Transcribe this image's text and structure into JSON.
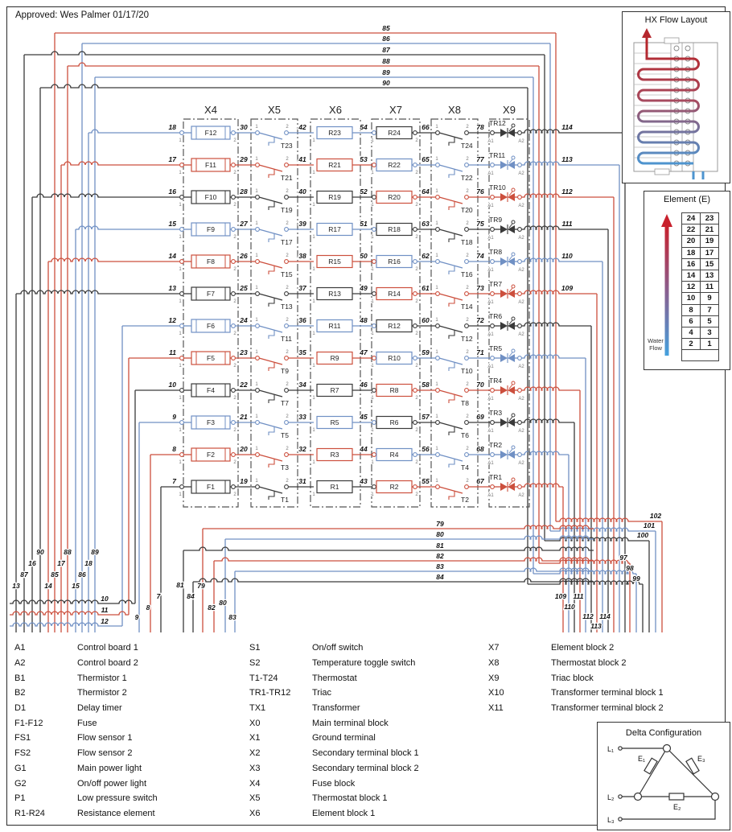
{
  "approved": "Approved: Wes Palmer 01/17/20",
  "colors": {
    "black": "#3a3a3a",
    "red": "#cc4f3d",
    "blue": "#7090c4"
  },
  "blocks": [
    "X4",
    "X5",
    "X6",
    "X7",
    "X8",
    "X9"
  ],
  "rows": [
    {
      "w1": "18",
      "fuse": "F12",
      "w2": "30",
      "t1": "T23",
      "w3": "42",
      "el1": "R23",
      "w4": "54",
      "el2": "R24",
      "w5": "66",
      "t2": "T24",
      "w6": "78",
      "tr": "TR12",
      "out": "114",
      "lc": "blue",
      "rc": "black"
    },
    {
      "w1": "17",
      "fuse": "F11",
      "w2": "29",
      "t1": "T21",
      "w3": "41",
      "el1": "R21",
      "w4": "53",
      "el2": "R22",
      "w5": "65",
      "t2": "T22",
      "w6": "77",
      "tr": "TR11",
      "out": "113",
      "lc": "red",
      "rc": "blue"
    },
    {
      "w1": "16",
      "fuse": "F10",
      "w2": "28",
      "t1": "T19",
      "w3": "40",
      "el1": "R19",
      "w4": "52",
      "el2": "R20",
      "w5": "64",
      "t2": "T20",
      "w6": "76",
      "tr": "TR10",
      "out": "112",
      "lc": "black",
      "rc": "red"
    },
    {
      "w1": "15",
      "fuse": "F9",
      "w2": "27",
      "t1": "T17",
      "w3": "39",
      "el1": "R17",
      "w4": "51",
      "el2": "R18",
      "w5": "63",
      "t2": "T18",
      "w6": "75",
      "tr": "TR9",
      "out": "111",
      "lc": "blue",
      "rc": "black"
    },
    {
      "w1": "14",
      "fuse": "F8",
      "w2": "26",
      "t1": "T15",
      "w3": "38",
      "el1": "R15",
      "w4": "50",
      "el2": "R16",
      "w5": "62",
      "t2": "T16",
      "w6": "74",
      "tr": "TR8",
      "out": "110",
      "lc": "red",
      "rc": "blue"
    },
    {
      "w1": "13",
      "fuse": "F7",
      "w2": "25",
      "t1": "T13",
      "w3": "37",
      "el1": "R13",
      "w4": "49",
      "el2": "R14",
      "w5": "61",
      "t2": "T14",
      "w6": "73",
      "tr": "TR7",
      "out": "109",
      "lc": "black",
      "rc": "red"
    },
    {
      "w1": "12",
      "fuse": "F6",
      "w2": "24",
      "t1": "T11",
      "w3": "36",
      "el1": "R11",
      "w4": "48",
      "el2": "R12",
      "w5": "60",
      "t2": "T12",
      "w6": "72",
      "tr": "TR6",
      "out": null,
      "lc": "blue",
      "rc": "black"
    },
    {
      "w1": "11",
      "fuse": "F5",
      "w2": "23",
      "t1": "T9",
      "w3": "35",
      "el1": "R9",
      "w4": "47",
      "el2": "R10",
      "w5": "59",
      "t2": "T10",
      "w6": "71",
      "tr": "TR5",
      "out": null,
      "lc": "red",
      "rc": "blue"
    },
    {
      "w1": "10",
      "fuse": "F4",
      "w2": "22",
      "t1": "T7",
      "w3": "34",
      "el1": "R7",
      "w4": "46",
      "el2": "R8",
      "w5": "58",
      "t2": "T8",
      "w6": "70",
      "tr": "TR4",
      "out": null,
      "lc": "black",
      "rc": "red"
    },
    {
      "w1": "9",
      "fuse": "F3",
      "w2": "21",
      "t1": "T5",
      "w3": "33",
      "el1": "R5",
      "w4": "45",
      "el2": "R6",
      "w5": "57",
      "t2": "T6",
      "w6": "69",
      "tr": "TR3",
      "out": null,
      "lc": "blue",
      "rc": "black"
    },
    {
      "w1": "8",
      "fuse": "F2",
      "w2": "20",
      "t1": "T3",
      "w3": "32",
      "el1": "R3",
      "w4": "44",
      "el2": "R4",
      "w5": "56",
      "t2": "T4",
      "w6": "68",
      "tr": "TR2",
      "out": null,
      "lc": "red",
      "rc": "blue"
    },
    {
      "w1": "7",
      "fuse": "F1",
      "w2": "19",
      "t1": "T1",
      "w3": "31",
      "el1": "R1",
      "w4": "43",
      "el2": "R2",
      "w5": "55",
      "t2": "T2",
      "w6": "67",
      "tr": "TR1",
      "out": null,
      "lc": "black",
      "rc": "red"
    }
  ],
  "top_bus": [
    {
      "label": "85",
      "color": "red",
      "end_label": "102"
    },
    {
      "label": "86",
      "color": "blue",
      "end_label": "101"
    },
    {
      "label": "87",
      "color": "black",
      "end_label": "100"
    },
    {
      "label": "88",
      "color": "red",
      "end_label": "97"
    },
    {
      "label": "89",
      "color": "blue",
      "end_label": "98"
    },
    {
      "label": "90",
      "color": "black",
      "end_label": "99"
    }
  ],
  "bottom_bus": [
    {
      "label": "79",
      "color": "red"
    },
    {
      "label": "80",
      "color": "blue"
    },
    {
      "label": "81",
      "color": "black"
    },
    {
      "label": "82",
      "color": "red"
    },
    {
      "label": "83",
      "color": "blue"
    },
    {
      "label": "84",
      "color": "black"
    }
  ],
  "left_bus": [
    {
      "label": "13",
      "color": "black"
    },
    {
      "label": "87",
      "color": "black"
    },
    {
      "label": "16",
      "color": "black"
    },
    {
      "label": "90",
      "color": "black"
    },
    {
      "label": "14",
      "color": "red"
    },
    {
      "label": "85",
      "color": "red"
    },
    {
      "label": "17",
      "color": "red"
    },
    {
      "label": "88",
      "color": "red"
    },
    {
      "label": "15",
      "color": "blue"
    },
    {
      "label": "86",
      "color": "blue"
    },
    {
      "label": "18",
      "color": "blue"
    },
    {
      "label": "89",
      "color": "blue"
    }
  ],
  "bottom_feeds": [
    {
      "label": "10",
      "color": "black"
    },
    {
      "label": "11",
      "color": "red"
    },
    {
      "label": "12",
      "color": "blue"
    }
  ],
  "mid_cluster": [
    "81",
    "7",
    "84",
    "79",
    "8",
    "82",
    "80",
    "9",
    "83"
  ],
  "br_cluster": [
    "109",
    "111",
    "110",
    "112",
    "114",
    "113"
  ],
  "hx": {
    "title": "HX Flow Layout"
  },
  "element_legend": {
    "title": "Element (E)",
    "water_flow_1": "Water",
    "water_flow_2": "Flow",
    "pairs": [
      [
        "24",
        "23"
      ],
      [
        "22",
        "21"
      ],
      [
        "20",
        "19"
      ],
      [
        "18",
        "17"
      ],
      [
        "16",
        "15"
      ],
      [
        "14",
        "13"
      ],
      [
        "12",
        "11"
      ],
      [
        "10",
        "9"
      ],
      [
        "8",
        "7"
      ],
      [
        "6",
        "5"
      ],
      [
        "4",
        "3"
      ],
      [
        "2",
        "1"
      ]
    ]
  },
  "delta": {
    "title": "Delta Configuration",
    "lines": [
      "L₁",
      "L₂",
      "L₃"
    ],
    "elements": [
      "E₁",
      "E₂",
      "E₃"
    ]
  },
  "legend": {
    "col1": [
      [
        "A1",
        "Control board 1"
      ],
      [
        "A2",
        "Control board 2"
      ],
      [
        "B1",
        "Thermistor 1"
      ],
      [
        "B2",
        "Thermistor 2"
      ],
      [
        "D1",
        "Delay timer"
      ],
      [
        "F1-F12",
        "Fuse"
      ],
      [
        "FS1",
        "Flow sensor 1"
      ],
      [
        "FS2",
        "Flow sensor 2"
      ],
      [
        "G1",
        "Main power light"
      ],
      [
        "G2",
        "On/off power light"
      ],
      [
        "P1",
        "Low pressure switch"
      ],
      [
        "R1-R24",
        "Resistance element"
      ]
    ],
    "col2": [
      [
        "S1",
        "On/off switch"
      ],
      [
        "S2",
        "Temperature toggle switch"
      ],
      [
        "T1-T24",
        "Thermostat"
      ],
      [
        "TR1-TR12",
        "Triac"
      ],
      [
        "TX1",
        "Transformer"
      ],
      [
        "X0",
        "Main terminal block"
      ],
      [
        "X1",
        "Ground terminal"
      ],
      [
        "X2",
        "Secondary terminal block 1"
      ],
      [
        "X3",
        "Secondary terminal block 2"
      ],
      [
        "X4",
        "Fuse block"
      ],
      [
        "X5",
        "Thermostat block 1"
      ],
      [
        "X6",
        "Element block 1"
      ]
    ],
    "col3": [
      [
        "X7",
        "Element block 2"
      ],
      [
        "X8",
        "Thermostat block 2"
      ],
      [
        "X9",
        "Triac block"
      ],
      [
        "X10",
        "Transformer terminal block 1"
      ],
      [
        "X11",
        "Transformer terminal block 2"
      ]
    ]
  }
}
